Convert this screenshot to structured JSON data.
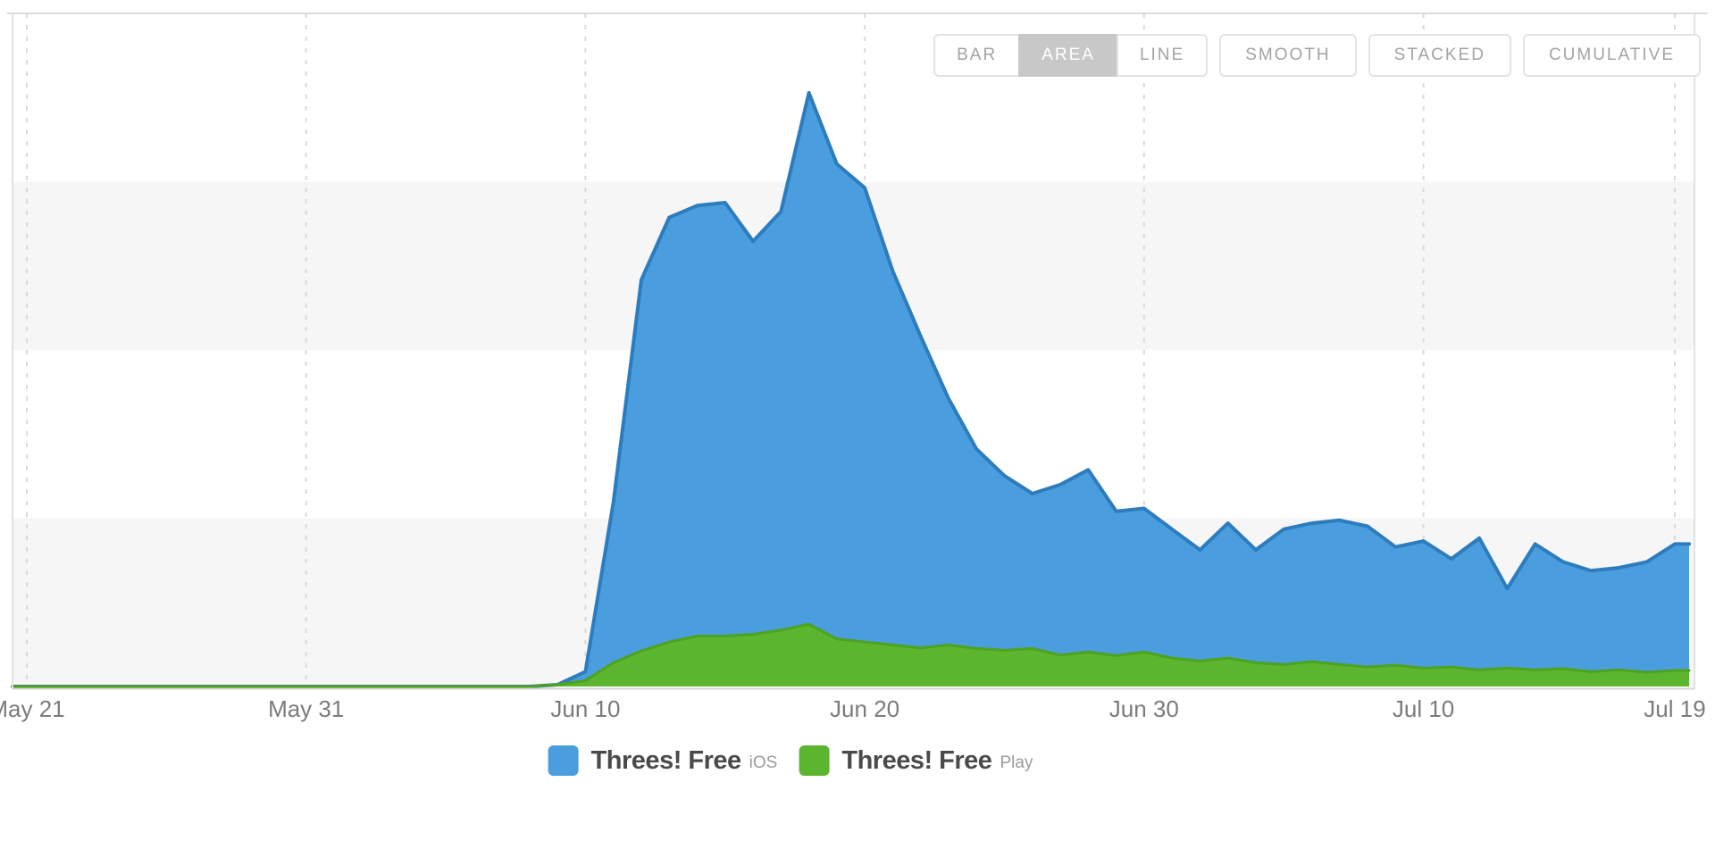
{
  "toolbar": {
    "buttons": [
      {
        "label": "BAR",
        "selected": false,
        "group": "chart-type"
      },
      {
        "label": "AREA",
        "selected": true,
        "group": "chart-type"
      },
      {
        "label": "LINE",
        "selected": false,
        "group": "chart-type"
      },
      {
        "label": "SMOOTH",
        "selected": false,
        "group": "modifier"
      },
      {
        "label": "STACKED",
        "selected": false,
        "group": "modifier"
      },
      {
        "label": "CUMULATIVE",
        "selected": false,
        "group": "modifier"
      }
    ],
    "selected_color": "#c8c8c8"
  },
  "legend": {
    "items": [
      {
        "label": "Threes! Free",
        "platform": "iOS",
        "color": "#4a9ede"
      },
      {
        "label": "Threes! Free",
        "platform": "Play",
        "color": "#5cb52f"
      }
    ]
  },
  "chart_data": {
    "type": "area",
    "mode": "overlaid (not stacked)",
    "title": "",
    "xlabel": "",
    "ylabel": "",
    "y_units": "downloads index, % of iOS peak (no y-axis labels visible in screenshot)",
    "ylim": [
      0,
      112
    ],
    "grid": "vertical dashed gridlines at date ticks; alternating horizontal background bands",
    "legend_position": "bottom-center",
    "x_tick_labels": [
      "May 21",
      "May 31",
      "Jun 10",
      "Jun 20",
      "Jun 30",
      "Jul 10",
      "Jul 19"
    ],
    "x_tick_indices": [
      0,
      10,
      20,
      30,
      40,
      50,
      59
    ],
    "x": [
      "May 21",
      "May 22",
      "May 23",
      "May 24",
      "May 25",
      "May 26",
      "May 27",
      "May 28",
      "May 29",
      "May 30",
      "May 31",
      "Jun 1",
      "Jun 2",
      "Jun 3",
      "Jun 4",
      "Jun 5",
      "Jun 6",
      "Jun 7",
      "Jun 8",
      "Jun 9",
      "Jun 10",
      "Jun 11",
      "Jun 12",
      "Jun 13",
      "Jun 14",
      "Jun 15",
      "Jun 16",
      "Jun 17",
      "Jun 18",
      "Jun 19",
      "Jun 20",
      "Jun 21",
      "Jun 22",
      "Jun 23",
      "Jun 24",
      "Jun 25",
      "Jun 26",
      "Jun 27",
      "Jun 28",
      "Jun 29",
      "Jun 30",
      "Jul 1",
      "Jul 2",
      "Jul 3",
      "Jul 4",
      "Jul 5",
      "Jul 6",
      "Jul 7",
      "Jul 8",
      "Jul 9",
      "Jul 10",
      "Jul 11",
      "Jul 12",
      "Jul 13",
      "Jul 14",
      "Jul 15",
      "Jul 16",
      "Jul 17",
      "Jul 18",
      "Jul 19"
    ],
    "series": [
      {
        "name": "Threes! Free iOS",
        "platform": "iOS",
        "color": "#4a9ede",
        "stroke": "#2c7cbe",
        "values": [
          0,
          0,
          0,
          0,
          0,
          0,
          0,
          0,
          0,
          0,
          0,
          0,
          0,
          0,
          0,
          0,
          0,
          0,
          0,
          0.3,
          2.5,
          31,
          68.5,
          79,
          81,
          81.5,
          75,
          80,
          100,
          88,
          84,
          70,
          59,
          48.5,
          40,
          35.5,
          32.5,
          34,
          36.5,
          29.5,
          30,
          26.5,
          23,
          27.5,
          23,
          26.5,
          27.5,
          28,
          27,
          23.5,
          24.5,
          21.5,
          25,
          16.5,
          24,
          21,
          19.5,
          20,
          21,
          24
        ]
      },
      {
        "name": "Threes! Free Play",
        "platform": "Play",
        "color": "#5cb52f",
        "stroke": "#4fa21c",
        "values": [
          0,
          0,
          0,
          0,
          0,
          0,
          0,
          0,
          0,
          0,
          0,
          0,
          0,
          0,
          0,
          0,
          0,
          0,
          0,
          0.3,
          1,
          4,
          6,
          7.5,
          8.5,
          8.5,
          8.8,
          9.5,
          10.5,
          8,
          7.5,
          7,
          6.5,
          7,
          6.4,
          6.1,
          6.4,
          5.3,
          5.8,
          5.2,
          5.8,
          4.8,
          4.3,
          4.8,
          4,
          3.7,
          4.2,
          3.7,
          3.3,
          3.6,
          3.1,
          3.3,
          2.8,
          3.1,
          2.8,
          3,
          2.5,
          2.8,
          2.4,
          2.7
        ]
      }
    ]
  }
}
